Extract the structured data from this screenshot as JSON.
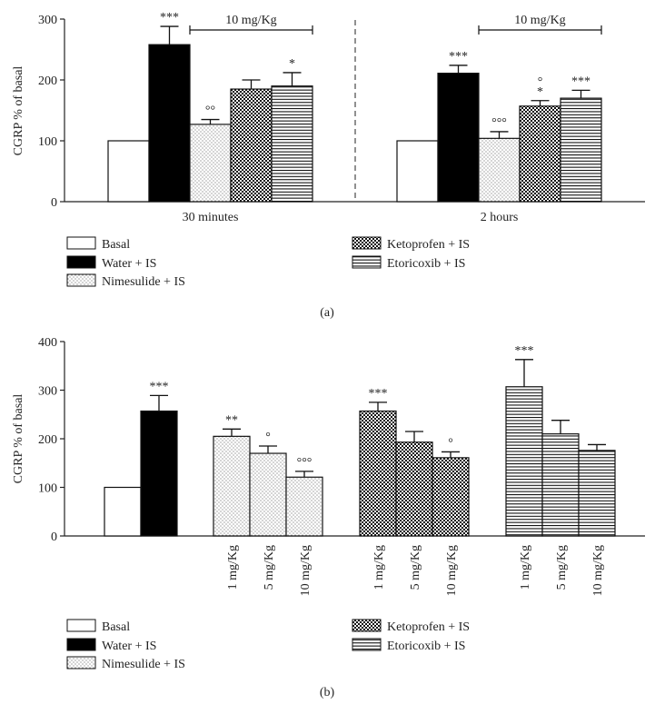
{
  "chart_data": [
    {
      "type": "bar",
      "panel_label": "(a)",
      "ylabel": "CGRP % of basal",
      "ylim": [
        0,
        300
      ],
      "yticks": [
        "0",
        "100",
        "200",
        "300"
      ],
      "series_names": [
        "Basal",
        "Water + IS",
        "Nimesulide + IS",
        "Ketoprofen + IS",
        "Etoricoxib + IS"
      ],
      "groups": [
        {
          "label": "30 minutes",
          "bracket_label": "10 mg/Kg",
          "values": [
            100,
            258,
            127,
            185,
            190
          ],
          "errors": [
            0,
            30,
            8,
            15,
            22
          ],
          "annotations": [
            "",
            "***",
            "°°",
            "",
            "*"
          ]
        },
        {
          "label": "2 hours",
          "bracket_label": "10 mg/Kg",
          "values": [
            100,
            211,
            104,
            157,
            170
          ],
          "errors": [
            0,
            13,
            11,
            9,
            13
          ],
          "annotations": [
            "",
            "***",
            "°°°",
            "°\n*",
            "***"
          ]
        }
      ],
      "legend": [
        "Basal",
        "Water + IS",
        "Nimesulide + IS",
        "Ketoprofen + IS",
        "Etoricoxib + IS"
      ]
    },
    {
      "type": "bar",
      "panel_label": "(b)",
      "ylabel": "CGRP % of basal",
      "ylim": [
        0,
        400
      ],
      "yticks": [
        "0",
        "100",
        "200",
        "300",
        "400"
      ],
      "controls": [
        {
          "name": "Basal",
          "value": 100,
          "error": 0,
          "annotation": ""
        },
        {
          "name": "Water + IS",
          "value": 257,
          "error": 32,
          "annotation": "***"
        }
      ],
      "drug_groups": [
        {
          "name": "Nimesulide + IS",
          "doses": [
            "1 mg/Kg",
            "5 mg/Kg",
            "10 mg/Kg"
          ],
          "values": [
            205,
            170,
            121
          ],
          "errors": [
            15,
            15,
            12
          ],
          "annotations": [
            "**",
            "°",
            "°°°"
          ]
        },
        {
          "name": "Ketoprofen + IS",
          "doses": [
            "1 mg/Kg",
            "5 mg/Kg",
            "10 mg/Kg"
          ],
          "values": [
            257,
            193,
            161
          ],
          "errors": [
            18,
            22,
            12
          ],
          "annotations": [
            "***",
            "",
            "°"
          ]
        },
        {
          "name": "Etoricoxib + IS",
          "doses": [
            "1 mg/Kg",
            "5 mg/Kg",
            "10 mg/Kg"
          ],
          "values": [
            307,
            210,
            176
          ],
          "errors": [
            56,
            28,
            12
          ],
          "annotations": [
            "***",
            "",
            ""
          ]
        }
      ],
      "legend": [
        "Basal",
        "Water + IS",
        "Nimesulide + IS",
        "Ketoprofen + IS",
        "Etoricoxib + IS"
      ]
    }
  ]
}
